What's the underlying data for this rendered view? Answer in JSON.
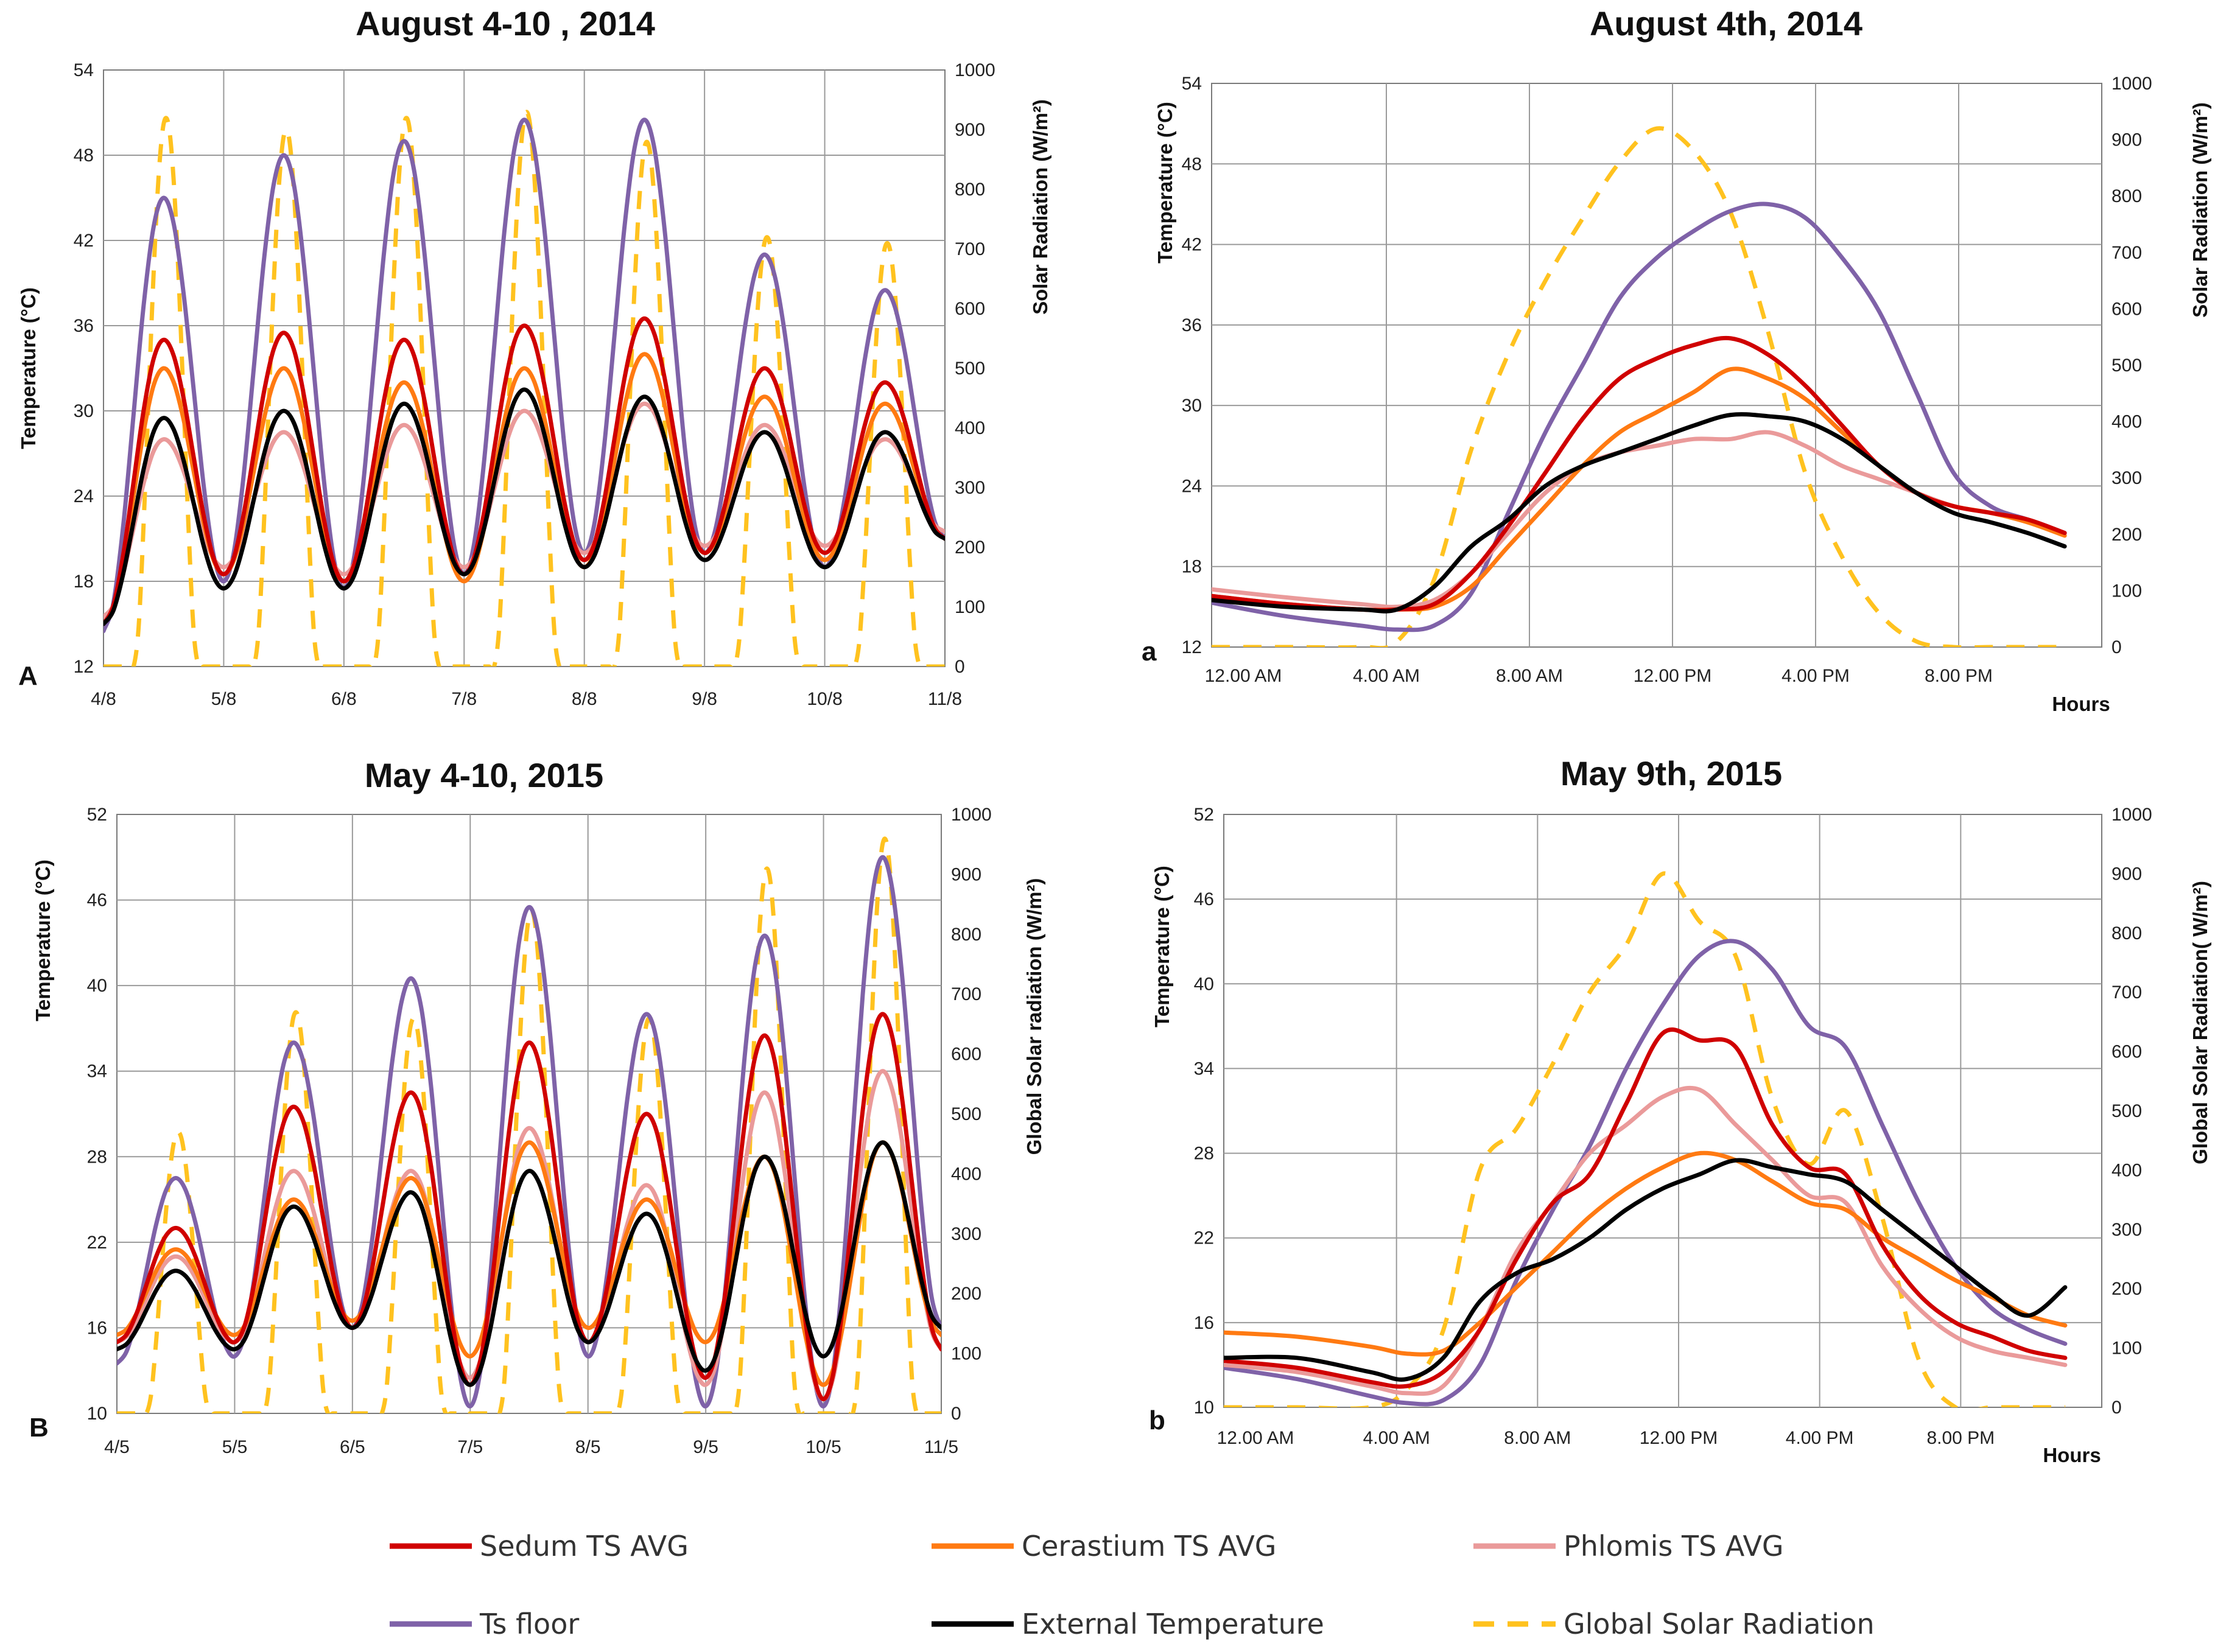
{
  "legend": [
    {
      "key": "sedum",
      "label": "Sedum TS AVG",
      "color": "#d00000",
      "dash": false
    },
    {
      "key": "cerastium",
      "label": "Cerastium TS AVG",
      "color": "#ff7a12",
      "dash": false
    },
    {
      "key": "phlomis",
      "label": "Phlomis TS AVG",
      "color": "#ea9a9a",
      "dash": false
    },
    {
      "key": "floor",
      "label": "Ts floor",
      "color": "#7f62a8",
      "dash": false
    },
    {
      "key": "ext",
      "label": "External Temperature",
      "color": "#000000",
      "dash": false
    },
    {
      "key": "rad",
      "label": "Global Solar Radiation",
      "color": "#ffc21f",
      "dash": true
    }
  ],
  "chart_data": [
    {
      "type": "line",
      "panel": "A",
      "title": "August 4-10 , 2014",
      "ylabel": "Temperature (°C)",
      "y2label": "Solar Radiation (W/m²)",
      "ylim": [
        12,
        54
      ],
      "yticks": [
        "12",
        "18",
        "24",
        "30",
        "36",
        "42",
        "48",
        "54"
      ],
      "y2lim": [
        0,
        1000
      ],
      "y2ticks": [
        "0",
        "100",
        "200",
        "300",
        "400",
        "500",
        "600",
        "700",
        "800",
        "900",
        "1000"
      ],
      "xlim": [
        0,
        7
      ],
      "xticks": [
        "4/8",
        "5/8",
        "6/8",
        "7/8",
        "8/8",
        "9/8",
        "10/8",
        "11/8"
      ],
      "daily": {
        "sedum": {
          "min": [
            15,
            18.5,
            18,
            18.5,
            19.5,
            20,
            20,
            21
          ],
          "peak": [
            35,
            35.5,
            35,
            36,
            36.5,
            33,
            32
          ]
        },
        "cerastium": {
          "min": [
            15,
            18.5,
            18,
            18,
            19,
            20,
            19.5,
            21
          ],
          "peak": [
            33,
            33,
            32,
            33,
            34,
            31,
            30.5
          ]
        },
        "phlomis": {
          "min": [
            15.5,
            19,
            18.5,
            19,
            20,
            20.5,
            20.5,
            21.5
          ],
          "peak": [
            28,
            28.5,
            29,
            30,
            30.5,
            29,
            28
          ]
        },
        "floor": {
          "min": [
            14.5,
            18,
            17.5,
            18.5,
            20,
            20,
            19,
            21
          ],
          "peak": [
            45,
            48,
            49,
            50.5,
            50.5,
            41,
            38.5
          ]
        },
        "ext": {
          "min": [
            15,
            17.5,
            17.5,
            18.5,
            19,
            19.5,
            19,
            21
          ],
          "peak": [
            29.5,
            30,
            30.5,
            31.5,
            31,
            28.5,
            28.5
          ]
        },
        "rad": {
          "min": [
            0,
            0,
            0,
            0,
            0,
            0,
            0,
            0
          ],
          "peak": [
            920,
            900,
            920,
            930,
            880,
            720,
            710
          ]
        }
      }
    },
    {
      "type": "line",
      "panel": "a",
      "title": "August 4th, 2014",
      "ylabel": "Temperature (°C)",
      "y2label": "Solar Radiation (W/m²)",
      "xlabel": "Hours",
      "ylim": [
        12,
        54
      ],
      "yticks": [
        "12",
        "18",
        "24",
        "30",
        "36",
        "42",
        "48",
        "54"
      ],
      "y2lim": [
        0,
        1000
      ],
      "y2ticks": [
        "0",
        "100",
        "200",
        "300",
        "400",
        "500",
        "600",
        "700",
        "800",
        "900",
        "1000"
      ],
      "xlim": [
        0,
        23
      ],
      "xticks": [
        "12.00 AM",
        "4.00 AM",
        "8.00 AM",
        "12.00 PM",
        "4.00 PM",
        "8.00 PM"
      ],
      "x": [
        0,
        2,
        4,
        5,
        6,
        7,
        8,
        9,
        10,
        11,
        12,
        13,
        14,
        15,
        16,
        17,
        18,
        19,
        20,
        21,
        22,
        23
      ],
      "series": {
        "sedum": [
          15.8,
          15.2,
          14.8,
          14.8,
          15.2,
          17.5,
          21,
          25,
          29,
          32,
          33.5,
          34.5,
          35,
          33.8,
          31.5,
          28.5,
          25.5,
          23.5,
          22.5,
          22,
          21.5,
          20.5
        ],
        "cerastium": [
          15.8,
          15.2,
          14.8,
          14.8,
          15,
          16.5,
          19.5,
          22.5,
          25.5,
          28,
          29.5,
          31,
          32.7,
          32,
          30.5,
          28,
          25.5,
          23.5,
          22.5,
          22,
          21.3,
          20.3
        ],
        "phlomis": [
          16.3,
          15.7,
          15.2,
          15,
          15.5,
          17.5,
          20.5,
          23.5,
          25.5,
          26.5,
          27,
          27.5,
          27.5,
          28,
          27,
          25.5,
          24.5,
          23.5,
          22.5,
          22,
          21.5,
          20.5
        ],
        "floor": [
          15.3,
          14.3,
          13.6,
          13.3,
          13.6,
          16,
          22,
          28,
          33,
          38,
          41,
          43,
          44.5,
          45,
          44,
          41,
          37,
          31,
          25,
          22.5,
          21.5,
          20.5
        ],
        "ext": [
          15.5,
          15,
          14.8,
          14.8,
          16.5,
          19.5,
          21.5,
          24,
          25.5,
          26.5,
          27.5,
          28.5,
          29.3,
          29.2,
          28.8,
          27.5,
          25.5,
          23.5,
          22,
          21.3,
          20.5,
          19.5
        ],
        "rad": [
          0,
          0,
          0,
          10,
          120,
          350,
          520,
          650,
          760,
          860,
          920,
          880,
          770,
          560,
          310,
          160,
          60,
          10,
          0,
          0,
          0,
          0
        ]
      }
    },
    {
      "type": "line",
      "panel": "B",
      "title": "May 4-10, 2015",
      "ylabel": "Temperature (°C)",
      "y2label": "Global Solar radiation (W/m²)",
      "ylim": [
        10,
        52
      ],
      "yticks": [
        "10",
        "16",
        "22",
        "28",
        "34",
        "40",
        "46",
        "52"
      ],
      "y2lim": [
        0,
        1000
      ],
      "y2ticks": [
        "0",
        "100",
        "200",
        "300",
        "400",
        "500",
        "600",
        "700",
        "800",
        "900",
        "1000"
      ],
      "xlim": [
        0,
        7
      ],
      "xticks": [
        "4/5",
        "5/5",
        "6/5",
        "7/5",
        "8/5",
        "9/5",
        "10/5",
        "11/5"
      ],
      "daily": {
        "sedum": {
          "min": [
            15,
            15,
            16,
            12,
            15,
            12.5,
            11,
            14.5
          ],
          "peak": [
            23,
            31.5,
            32.5,
            36,
            31,
            36.5,
            38
          ]
        },
        "cerastium": {
          "min": [
            15.5,
            15.5,
            16.5,
            14,
            16,
            15,
            12,
            15.5
          ],
          "peak": [
            21.5,
            25,
            26.5,
            29,
            25,
            28,
            29
          ]
        },
        "phlomis": {
          "min": [
            15,
            15,
            16,
            12.5,
            15,
            12,
            11,
            14.5
          ],
          "peak": [
            21,
            27,
            27,
            30,
            26,
            32.5,
            34
          ]
        },
        "floor": {
          "min": [
            13.5,
            14,
            16,
            10.5,
            14,
            10.5,
            10.5,
            16
          ],
          "peak": [
            26.5,
            36,
            40.5,
            45.5,
            38,
            43.5,
            49
          ]
        },
        "ext": {
          "min": [
            14.5,
            14.5,
            16,
            12,
            15,
            13,
            14,
            16
          ],
          "peak": [
            20,
            24.5,
            25.5,
            27,
            24,
            28,
            29
          ]
        },
        "rad": {
          "min": [
            0,
            0,
            0,
            0,
            0,
            0,
            0,
            0
          ],
          "peak": [
            470,
            670,
            660,
            840,
            660,
            910,
            960
          ]
        }
      }
    },
    {
      "type": "line",
      "panel": "b",
      "title": "May 9th, 2015",
      "ylabel": "Temperature (°C)",
      "y2label": "Global Solar Radiation( W/m²)",
      "xlabel": "Hours",
      "ylim": [
        10,
        52
      ],
      "yticks": [
        "10",
        "16",
        "22",
        "28",
        "34",
        "40",
        "46",
        "52"
      ],
      "y2lim": [
        0,
        1000
      ],
      "y2ticks": [
        "0",
        "100",
        "200",
        "300",
        "400",
        "500",
        "600",
        "700",
        "800",
        "900",
        "1000"
      ],
      "xlim": [
        0,
        23
      ],
      "xticks": [
        "12.00 AM",
        "4.00 AM",
        "8.00 AM",
        "12.00 PM",
        "4.00 PM",
        "8.00 PM"
      ],
      "x": [
        0,
        2,
        4,
        5,
        6,
        7,
        8,
        9,
        10,
        11,
        12,
        13,
        14,
        15,
        16,
        17,
        18,
        19,
        20,
        21,
        22,
        23
      ],
      "series": {
        "sedum": [
          13.3,
          12.8,
          11.8,
          11.5,
          12.5,
          15.5,
          20.5,
          24.5,
          26.5,
          31.5,
          36.5,
          36,
          35.5,
          30,
          27,
          26.5,
          21.5,
          18,
          16,
          15,
          14,
          13.5
        ],
        "cerastium": [
          15.3,
          15,
          14.3,
          13.8,
          14,
          16,
          18.5,
          21,
          23.5,
          25.5,
          27,
          28,
          27.5,
          26,
          24.5,
          24,
          22,
          20.5,
          19,
          17.8,
          16.5,
          15.8
        ],
        "phlomis": [
          13,
          12.5,
          11.5,
          11,
          11.5,
          15.5,
          21,
          24.5,
          28,
          30,
          32,
          32.5,
          30,
          27.5,
          25,
          24.5,
          20,
          17,
          15,
          14,
          13.5,
          13
        ],
        "floor": [
          12.8,
          12,
          10.8,
          10.3,
          10.5,
          13,
          19,
          24,
          28.5,
          34,
          38.5,
          42,
          43,
          41,
          37,
          35.5,
          30,
          24.5,
          20,
          17,
          15.5,
          14.5
        ],
        "ext": [
          13.5,
          13.5,
          12.5,
          12,
          13.5,
          17.5,
          19.5,
          20.5,
          22,
          24,
          25.5,
          26.5,
          27.5,
          27,
          26.5,
          26,
          24,
          22,
          20,
          18,
          16.5,
          18.5
        ],
        "rad": [
          0,
          0,
          0,
          30,
          130,
          400,
          470,
          580,
          700,
          780,
          900,
          820,
          760,
          520,
          410,
          500,
          320,
          80,
          0,
          0,
          0,
          0
        ]
      }
    }
  ]
}
